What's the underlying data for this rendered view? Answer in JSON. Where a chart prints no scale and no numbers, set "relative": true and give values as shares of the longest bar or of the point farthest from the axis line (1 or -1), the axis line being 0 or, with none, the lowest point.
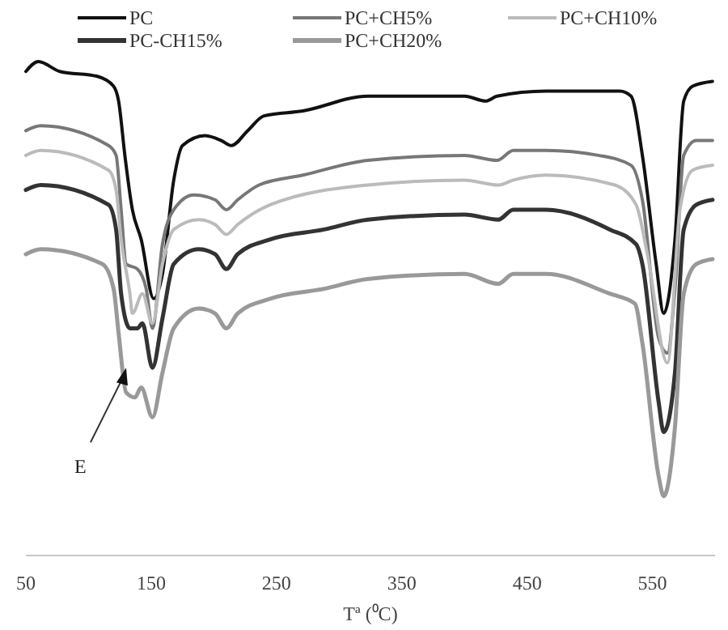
{
  "chart_data": {
    "type": "line",
    "relative": true,
    "xlabel": "Tª (⁰C)",
    "xlim": [
      50,
      600
    ],
    "xticks": [
      50,
      150,
      250,
      350,
      450,
      550
    ],
    "grid": false,
    "legend": "top",
    "annotations": [
      {
        "text": "E",
        "x": 130,
        "y": 0.38
      }
    ],
    "series": [
      {
        "name": "PC",
        "color": "#111111",
        "x": [
          50,
          60,
          77,
          107,
          120,
          124,
          129,
          135,
          142,
          152,
          159,
          168,
          175,
          193,
          206,
          214,
          227,
          240,
          271,
          323,
          400,
          417,
          426,
          465,
          524,
          533,
          542,
          553,
          559,
          568,
          575,
          582,
          598
        ],
        "values": [
          0.98,
          1.0,
          0.98,
          0.97,
          0.95,
          0.92,
          0.81,
          0.7,
          0.64,
          0.52,
          0.57,
          0.76,
          0.83,
          0.85,
          0.84,
          0.83,
          0.86,
          0.89,
          0.9,
          0.93,
          0.93,
          0.92,
          0.93,
          0.94,
          0.94,
          0.93,
          0.81,
          0.59,
          0.49,
          0.64,
          0.92,
          0.95,
          0.96
        ]
      },
      {
        "name": "PC+CH5%",
        "color": "#777777",
        "x": [
          50,
          62,
          116,
          122,
          126,
          130,
          139,
          146,
          151,
          159,
          168,
          184,
          201,
          210,
          219,
          236,
          271,
          323,
          400,
          426,
          439,
          465,
          507,
          533,
          542,
          555,
          562,
          568,
          575,
          585,
          598
        ],
        "values": [
          0.86,
          0.87,
          0.83,
          0.81,
          0.7,
          0.59,
          0.58,
          0.54,
          0.46,
          0.63,
          0.7,
          0.73,
          0.72,
          0.7,
          0.72,
          0.75,
          0.77,
          0.8,
          0.81,
          0.8,
          0.82,
          0.82,
          0.81,
          0.79,
          0.72,
          0.44,
          0.41,
          0.54,
          0.81,
          0.84,
          0.84
        ]
      },
      {
        "name": "PC+CH10%",
        "color": "#bbbbbb",
        "x": [
          50,
          62,
          116,
          122,
          126,
          133,
          135,
          143,
          151,
          159,
          168,
          188,
          201,
          210,
          219,
          245,
          323,
          400,
          427,
          439,
          465,
          520,
          537,
          546,
          562,
          572,
          582,
          598
        ],
        "values": [
          0.81,
          0.82,
          0.78,
          0.74,
          0.64,
          0.53,
          0.49,
          0.53,
          0.47,
          0.59,
          0.66,
          0.68,
          0.67,
          0.65,
          0.67,
          0.71,
          0.75,
          0.76,
          0.75,
          0.76,
          0.77,
          0.75,
          0.71,
          0.61,
          0.39,
          0.7,
          0.78,
          0.79
        ]
      },
      {
        "name": "PC-CH15%",
        "color": "#333333",
        "x": [
          50,
          62,
          116,
          122,
          126,
          133,
          139,
          143,
          151,
          159,
          168,
          188,
          201,
          210,
          219,
          245,
          288,
          323,
          400,
          427,
          439,
          465,
          516,
          537,
          542,
          555,
          559,
          568,
          575,
          585,
          598
        ],
        "values": [
          0.74,
          0.75,
          0.71,
          0.66,
          0.53,
          0.46,
          0.46,
          0.47,
          0.38,
          0.48,
          0.59,
          0.62,
          0.61,
          0.58,
          0.61,
          0.64,
          0.66,
          0.68,
          0.69,
          0.68,
          0.7,
          0.7,
          0.66,
          0.63,
          0.59,
          0.31,
          0.25,
          0.37,
          0.66,
          0.71,
          0.72
        ]
      },
      {
        "name": "PC+CH20%",
        "color": "#999999",
        "x": [
          50,
          62,
          111,
          120,
          124,
          130,
          137,
          142,
          151,
          159,
          168,
          188,
          201,
          210,
          219,
          245,
          288,
          323,
          400,
          427,
          439,
          465,
          516,
          536,
          542,
          555,
          559,
          568,
          575,
          585,
          598
        ],
        "values": [
          0.61,
          0.62,
          0.59,
          0.54,
          0.45,
          0.33,
          0.32,
          0.34,
          0.28,
          0.37,
          0.46,
          0.5,
          0.49,
          0.46,
          0.49,
          0.52,
          0.54,
          0.56,
          0.57,
          0.55,
          0.57,
          0.57,
          0.53,
          0.51,
          0.43,
          0.16,
          0.12,
          0.26,
          0.53,
          0.59,
          0.6
        ]
      }
    ]
  }
}
